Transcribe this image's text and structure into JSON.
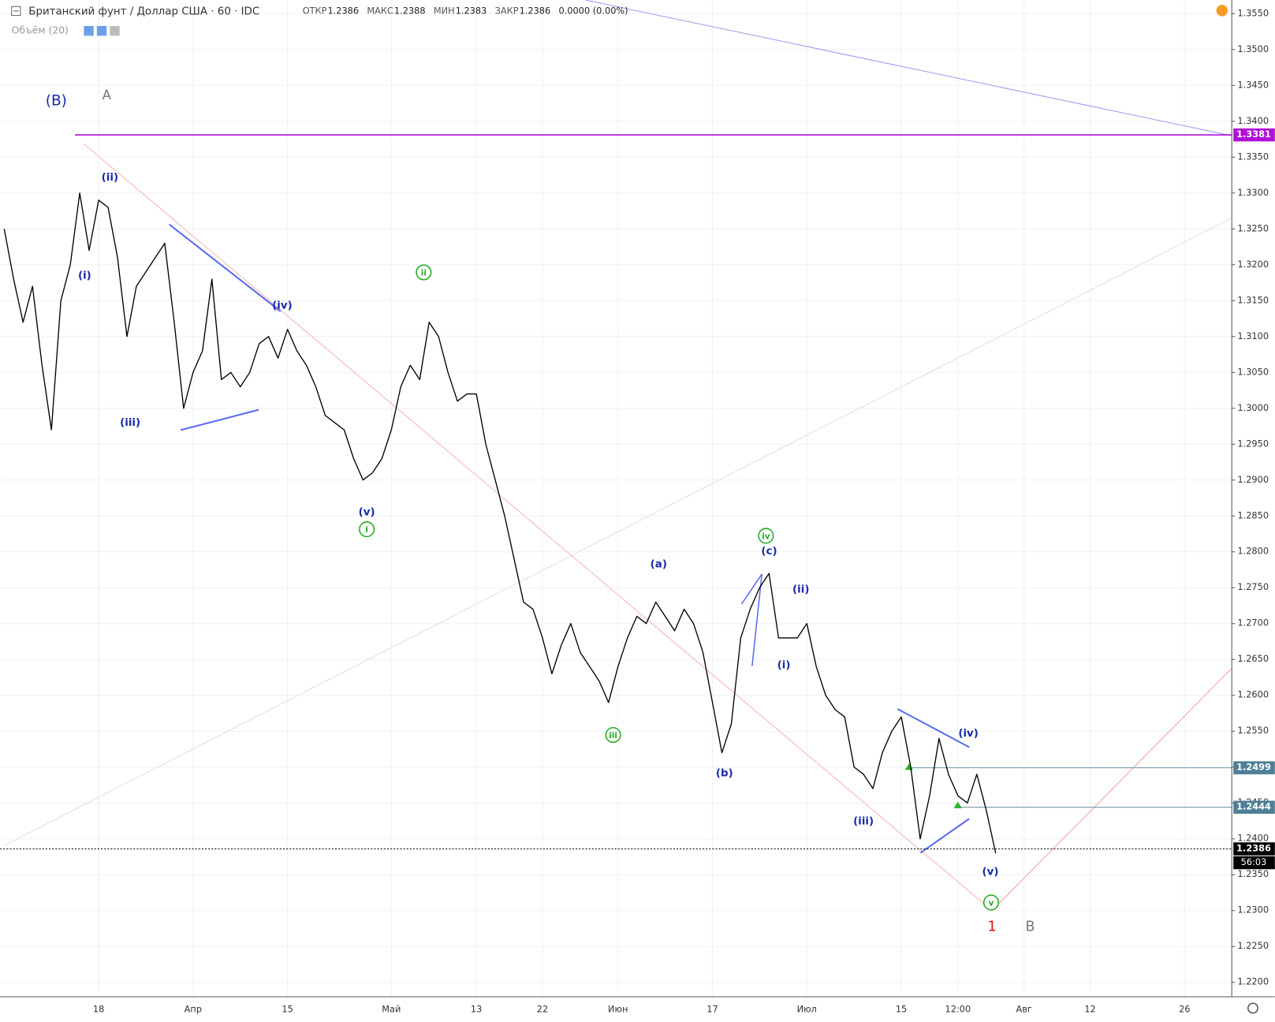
{
  "header": {
    "symbol": "Британский фунт / Доллар США · 60 · IDC",
    "ohlc": [
      {
        "label": "ОТКР",
        "value": 1.2386
      },
      {
        "label": "МАКС",
        "value": 1.2388
      },
      {
        "label": "МИН",
        "value": 1.2383
      },
      {
        "label": "ЗАКР",
        "value": 1.2386
      }
    ],
    "change": "0.0000 (0.00%)",
    "volume": "Объём (20)"
  },
  "chart_data": {
    "type": "line",
    "color": "#000000",
    "grid": true,
    "categories": [
      null,
      null,
      null,
      null,
      null,
      null,
      null,
      null,
      null,
      null,
      "18",
      null,
      null,
      null,
      null,
      null,
      null,
      null,
      null,
      null,
      "Апр",
      null,
      null,
      null,
      null,
      null,
      null,
      null,
      null,
      null,
      "15",
      null,
      null,
      null,
      null,
      null,
      null,
      null,
      null,
      null,
      null,
      "Май",
      null,
      null,
      null,
      null,
      null,
      null,
      null,
      null,
      "13",
      null,
      null,
      null,
      null,
      null,
      null,
      "22",
      null,
      null,
      null,
      null,
      null,
      null,
      null,
      "Июн",
      null,
      null,
      null,
      null,
      null,
      null,
      null,
      null,
      null,
      "17",
      null,
      null,
      null,
      null,
      null,
      null,
      null,
      null,
      null,
      "Июл",
      null,
      null,
      null,
      null,
      null,
      null,
      null,
      null,
      null,
      "15",
      null,
      null,
      null,
      null,
      null,
      "12:00",
      null,
      null,
      null,
      null,
      null,
      null,
      "Авг",
      null,
      null,
      null,
      null,
      null,
      null,
      "12",
      null,
      null,
      null,
      null,
      null,
      null,
      null,
      null,
      null,
      "26",
      null,
      null,
      null,
      null,
      null
    ],
    "values": [
      1.325,
      1.318,
      1.312,
      1.317,
      1.306,
      1.297,
      1.315,
      1.32,
      1.33,
      1.322,
      1.329,
      1.328,
      1.321,
      1.31,
      1.317,
      1.319,
      1.321,
      1.323,
      1.312,
      1.3,
      1.305,
      1.308,
      1.318,
      1.304,
      1.305,
      1.303,
      1.305,
      1.309,
      1.31,
      1.307,
      1.311,
      1.308,
      1.306,
      1.303,
      1.299,
      1.298,
      1.297,
      1.293,
      1.29,
      1.291,
      1.293,
      1.297,
      1.303,
      1.306,
      1.304,
      1.312,
      1.31,
      1.305,
      1.301,
      1.302,
      1.302,
      1.295,
      1.29,
      1.285,
      1.279,
      1.273,
      1.272,
      1.268,
      1.263,
      1.267,
      1.27,
      1.266,
      1.264,
      1.262,
      1.259,
      1.264,
      1.268,
      1.271,
      1.27,
      1.273,
      1.271,
      1.269,
      1.272,
      1.27,
      1.266,
      1.259,
      1.252,
      1.256,
      1.268,
      1.272,
      1.275,
      1.277,
      1.268,
      1.268,
      1.268,
      1.27,
      1.264,
      1.26,
      1.258,
      1.257,
      1.25,
      1.249,
      1.247,
      1.252,
      1.255,
      1.257,
      1.25,
      1.24,
      1.246,
      1.254,
      1.249,
      1.246,
      1.245,
      1.249,
      1.244,
      1.238,
      null,
      null,
      null,
      null,
      null,
      null,
      null,
      null,
      null,
      null,
      null,
      null,
      null,
      null,
      null,
      null,
      null,
      null,
      null,
      null,
      null,
      null,
      null,
      null,
      null
    ],
    "ylim": [
      1.2181,
      1.3569
    ],
    "yticks": [
      {
        "value": 1.22,
        "label": "1.2200"
      },
      {
        "value": 1.225,
        "label": "1.2250"
      },
      {
        "value": 1.23,
        "label": "1.2300"
      },
      {
        "value": 1.235,
        "label": "1.2350"
      },
      {
        "value": 1.24,
        "label": "1.2400"
      },
      {
        "value": 1.245,
        "label": "1.2450"
      },
      {
        "value": 1.25,
        "label": "1.2500"
      },
      {
        "value": 1.255,
        "label": "1.2550"
      },
      {
        "value": 1.26,
        "label": "1.2600"
      },
      {
        "value": 1.265,
        "label": "1.2650"
      },
      {
        "value": 1.27,
        "label": "1.2700"
      },
      {
        "value": 1.275,
        "label": "1.2750"
      },
      {
        "value": 1.28,
        "label": "1.2800"
      },
      {
        "value": 1.285,
        "label": "1.2850"
      },
      {
        "value": 1.29,
        "label": "1.2900"
      },
      {
        "value": 1.295,
        "label": "1.2950"
      },
      {
        "value": 1.3,
        "label": "1.3000"
      },
      {
        "value": 1.305,
        "label": "1.3050"
      },
      {
        "value": 1.31,
        "label": "1.3100"
      },
      {
        "value": 1.315,
        "label": "1.3150"
      },
      {
        "value": 1.32,
        "label": "1.3200"
      },
      {
        "value": 1.325,
        "label": "1.3250"
      },
      {
        "value": 1.33,
        "label": "1.3300"
      },
      {
        "value": 1.335,
        "label": "1.3350"
      },
      {
        "value": 1.34,
        "label": "1.3400"
      },
      {
        "value": 1.345,
        "label": "1.3450"
      },
      {
        "value": 1.35,
        "label": "1.3500"
      },
      {
        "value": 1.355,
        "label": "1.3550"
      }
    ],
    "levels": [
      {
        "value": 1.3381,
        "color": "#b010d8"
      },
      {
        "value": 1.2499,
        "color": "#4f7f96"
      },
      {
        "value": 1.2444,
        "color": "#4f7f96"
      },
      {
        "value": 1.2386,
        "color": "#000000"
      }
    ],
    "timer": "56:03",
    "annotations": [
      {
        "text": "(B)",
        "color": "#1a2aa8"
      },
      {
        "text": "A",
        "color": "#777777"
      },
      {
        "text": "(ii)",
        "color": "#1a2aa8"
      },
      {
        "text": "(i)",
        "color": "#1a2aa8"
      },
      {
        "text": "(iii)",
        "color": "#1a2aa8"
      },
      {
        "text": "(iv)",
        "color": "#1a2aa8"
      },
      {
        "text": "(v)",
        "color": "#1a2aa8"
      },
      {
        "text": "i",
        "color": "#22aa22"
      },
      {
        "text": "ii",
        "color": "#22aa22"
      },
      {
        "text": "iii",
        "color": "#22aa22"
      },
      {
        "text": "iv",
        "color": "#22aa22"
      },
      {
        "text": "v",
        "color": "#22aa22"
      },
      {
        "text": "(a)",
        "color": "#1a2aa8"
      },
      {
        "text": "(c)",
        "color": "#1a2aa8"
      },
      {
        "text": "(b)",
        "color": "#1a2aa8"
      },
      {
        "text": "(ii)",
        "color": "#1a2aa8"
      },
      {
        "text": "(i)",
        "color": "#1a2aa8"
      },
      {
        "text": "(iii)",
        "color": "#1a2aa8"
      },
      {
        "text": "(iv)",
        "color": "#1a2aa8"
      },
      {
        "text": "(v)",
        "color": "#1a2aa8"
      },
      {
        "text": "1",
        "color": "#d01010"
      },
      {
        "text": "B",
        "color": "#777777"
      }
    ]
  }
}
